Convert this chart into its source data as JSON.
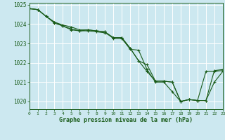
{
  "line1": {
    "x": [
      0,
      1,
      2,
      3,
      4,
      5,
      6,
      7,
      8,
      9,
      10,
      11,
      12,
      13,
      14,
      15,
      16,
      17,
      18,
      19,
      20,
      21,
      22,
      23
    ],
    "y": [
      1024.8,
      1024.75,
      1024.4,
      1024.1,
      1023.9,
      1023.75,
      1023.65,
      1023.65,
      1023.6,
      1023.55,
      1023.3,
      1023.3,
      1022.75,
      1022.1,
      1021.9,
      1021.05,
      1021.05,
      1021.0,
      1020.0,
      1020.1,
      1020.05,
      1021.55,
      1021.55,
      1021.6
    ]
  },
  "line2": {
    "x": [
      0,
      1,
      2,
      3,
      4,
      5,
      6,
      7,
      8,
      9,
      10,
      11,
      12,
      13,
      14,
      15,
      16,
      17,
      18,
      19,
      20,
      21,
      22,
      23
    ],
    "y": [
      1024.8,
      1024.75,
      1024.4,
      1024.05,
      1023.9,
      1023.7,
      1023.65,
      1023.7,
      1023.65,
      1023.6,
      1023.25,
      1023.25,
      1022.7,
      1022.65,
      1021.65,
      1021.0,
      1021.0,
      1020.5,
      1020.0,
      1020.1,
      1020.05,
      1020.05,
      1021.0,
      1021.55
    ]
  },
  "line3": {
    "x": [
      0,
      1,
      2,
      3,
      4,
      5,
      6,
      7,
      8,
      9,
      10,
      11,
      12,
      13,
      14,
      15,
      16,
      17,
      18,
      19,
      20,
      21,
      22,
      23
    ],
    "y": [
      1024.8,
      1024.75,
      1024.4,
      1024.1,
      1023.95,
      1023.85,
      1023.7,
      1023.7,
      1023.65,
      1023.6,
      1023.3,
      1023.3,
      1022.75,
      1022.1,
      1021.55,
      1021.05,
      1021.05,
      1021.0,
      1020.0,
      1020.1,
      1020.05,
      1020.05,
      1021.6,
      1021.65
    ]
  },
  "bg_color": "#cce8f0",
  "line_color": "#1a5c1a",
  "grid_color": "#ffffff",
  "xlabel": "Graphe pression niveau de la mer (hPa)",
  "ylim": [
    1019.6,
    1025.1
  ],
  "xlim": [
    0,
    23
  ],
  "yticks": [
    1020,
    1021,
    1022,
    1023,
    1024,
    1025
  ],
  "xticks": [
    0,
    1,
    2,
    3,
    4,
    5,
    6,
    7,
    8,
    9,
    10,
    11,
    12,
    13,
    14,
    15,
    16,
    17,
    18,
    19,
    20,
    21,
    22,
    23
  ],
  "marker": "+"
}
